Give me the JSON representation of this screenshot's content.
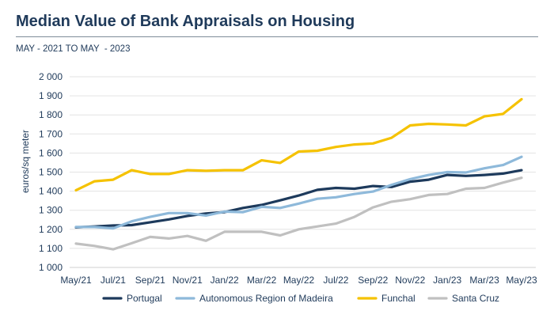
{
  "header": {
    "title": "Median Value of Bank Appraisals on Housing",
    "subtitle": "MAY - 2021 TO MAY  - 2023"
  },
  "chart_data": {
    "type": "line",
    "title": "Median Value of Bank Appraisals on Housing",
    "subtitle": "MAY - 2021 TO MAY  - 2023",
    "xlabel": "",
    "ylabel": "euros/sq meter",
    "ylim": [
      1000,
      2000
    ],
    "yticks": [
      1000,
      1100,
      1200,
      1300,
      1400,
      1500,
      1600,
      1700,
      1800,
      1900,
      2000
    ],
    "ytick_labels": [
      "1 000",
      "1 100",
      "1 200",
      "1 300",
      "1 400",
      "1 500",
      "1 600",
      "1 700",
      "1 800",
      "1 900",
      "2 000"
    ],
    "x": [
      "May/21",
      "Jun/21",
      "Jul/21",
      "Aug/21",
      "Sep/21",
      "Oct/21",
      "Nov/21",
      "Dec/21",
      "Jan/22",
      "Feb/22",
      "Mar/22",
      "Apr/22",
      "May/22",
      "Jun/22",
      "Jul/22",
      "Aug/22",
      "Sep/22",
      "Oct/22",
      "Nov/22",
      "Dec/22",
      "Jan/23",
      "Feb/23",
      "Mar/23",
      "Apr/23",
      "May/23"
    ],
    "xtick_labels": [
      "May/21",
      "",
      "Jul/21",
      "",
      "Sep/21",
      "",
      "Nov/21",
      "",
      "Jan/22",
      "",
      "Mar/22",
      "",
      "May/22",
      "",
      "Jul/22",
      "",
      "Sep/22",
      "",
      "Nov/22",
      "",
      "Jan/23",
      "",
      "Mar/23",
      "",
      "May/23"
    ],
    "grid": "horizontal",
    "legend": "bottom",
    "series": [
      {
        "name": "Portugal",
        "color": "#1d3a5c",
        "values": [
          1210,
          1215,
          1220,
          1222,
          1237,
          1252,
          1270,
          1283,
          1290,
          1312,
          1328,
          1352,
          1377,
          1407,
          1417,
          1413,
          1427,
          1422,
          1450,
          1460,
          1485,
          1480,
          1485,
          1492,
          1510
        ]
      },
      {
        "name": "Autonomous Region of Madeira",
        "color": "#8eb9da",
        "values": [
          1212,
          1212,
          1205,
          1242,
          1265,
          1285,
          1285,
          1272,
          1293,
          1290,
          1318,
          1312,
          1335,
          1360,
          1368,
          1385,
          1398,
          1433,
          1463,
          1485,
          1500,
          1498,
          1520,
          1537,
          1580
        ]
      },
      {
        "name": "Funchal",
        "color": "#f5c200",
        "values": [
          1405,
          1452,
          1460,
          1510,
          1490,
          1490,
          1510,
          1507,
          1510,
          1510,
          1562,
          1548,
          1608,
          1612,
          1632,
          1645,
          1650,
          1680,
          1745,
          1753,
          1750,
          1745,
          1792,
          1805,
          1882
        ]
      },
      {
        "name": "Santa Cruz",
        "color": "#c0c0c0",
        "values": [
          1125,
          1113,
          1095,
          1127,
          1160,
          1152,
          1165,
          1140,
          1187,
          1187,
          1187,
          1168,
          1200,
          1215,
          1230,
          1265,
          1315,
          1345,
          1358,
          1380,
          1385,
          1413,
          1417,
          1445,
          1470
        ]
      }
    ]
  }
}
